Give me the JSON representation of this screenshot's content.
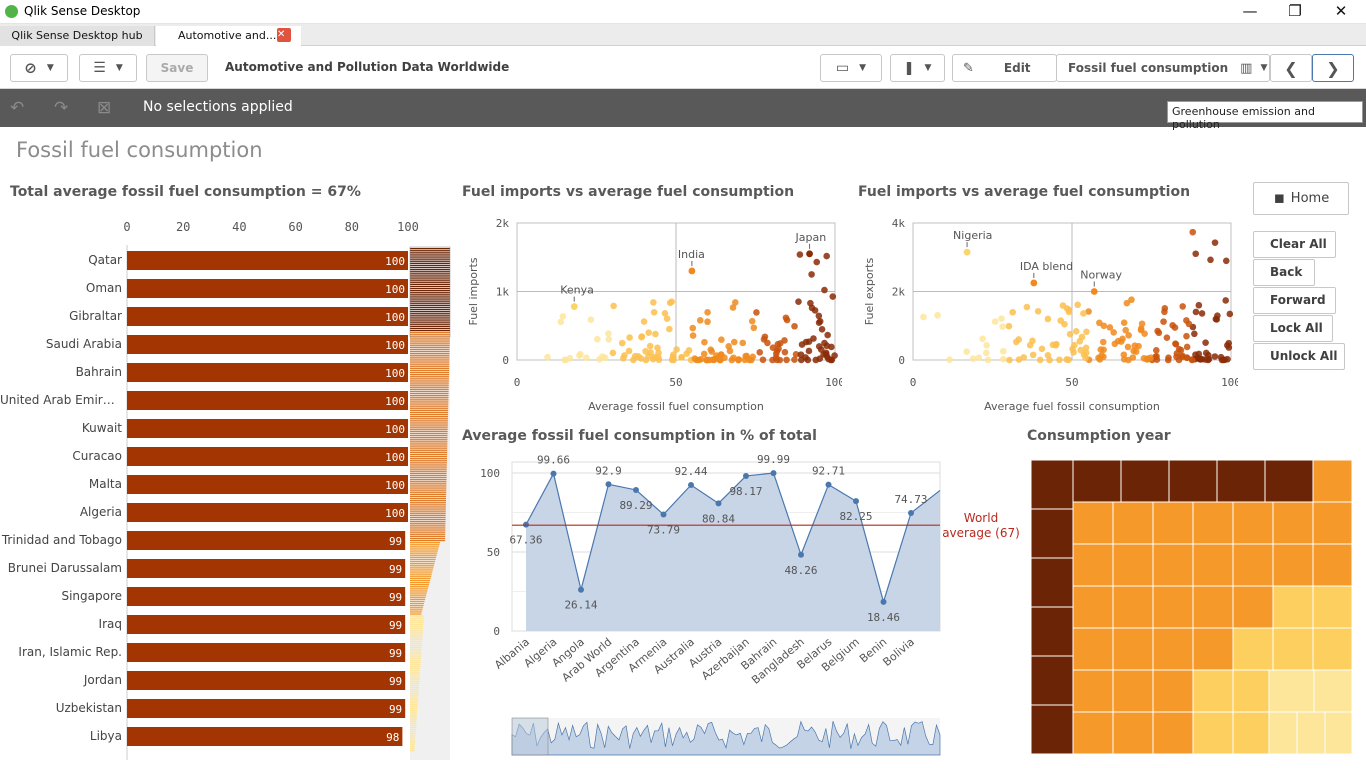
{
  "window": {
    "title": "Qlik Sense Desktop",
    "controls": [
      "—",
      "❐",
      "✕"
    ]
  },
  "tabs": [
    {
      "label": "Qlik Sense Desktop hub"
    },
    {
      "label": "Automotive and..."
    }
  ],
  "toolbar": {
    "save_label": "Save",
    "app_title": "Automotive and Pollution Data Worldwide",
    "edit_label": "Edit",
    "sheet_name": "Fossil fuel consumption"
  },
  "selections": {
    "text": "No selections applied",
    "tooltip": "Greenhouse emission and pollution"
  },
  "sheet": {
    "title": "Fossil fuel consumption"
  },
  "barchart": {
    "title": "Total average fossil fuel consumption = 67%",
    "ticks": [
      "0",
      "20",
      "40",
      "60",
      "80",
      "100"
    ],
    "rows": [
      {
        "label": "Qatar",
        "value": 100
      },
      {
        "label": "Oman",
        "value": 100
      },
      {
        "label": "Gibraltar",
        "value": 100
      },
      {
        "label": "Saudi Arabia",
        "value": 100
      },
      {
        "label": "Bahrain",
        "value": 100
      },
      {
        "label": "United Arab Emirat...",
        "value": 100
      },
      {
        "label": "Kuwait",
        "value": 100
      },
      {
        "label": "Curacao",
        "value": 100
      },
      {
        "label": "Malta",
        "value": 100
      },
      {
        "label": "Algeria",
        "value": 100
      },
      {
        "label": "Trinidad and Tobago",
        "value": 99
      },
      {
        "label": "Brunei Darussalam",
        "value": 99
      },
      {
        "label": "Singapore",
        "value": 99
      },
      {
        "label": "Iraq",
        "value": 99
      },
      {
        "label": "Iran, Islamic Rep.",
        "value": 99
      },
      {
        "label": "Jordan",
        "value": 99
      },
      {
        "label": "Uzbekistan",
        "value": 99
      },
      {
        "label": "Libya",
        "value": 98
      }
    ]
  },
  "scatter1": {
    "title": "Fuel imports vs average fuel consumption",
    "ylabel": "Fuel imports",
    "xlabel": "Average fossil fuel consumption",
    "yticks": [
      "2k",
      "1k",
      "0"
    ],
    "xticks": [
      "0",
      "50",
      "100"
    ],
    "annotations": [
      {
        "label": "Kenya",
        "x": 18,
        "y": 780
      },
      {
        "label": "India",
        "x": 55,
        "y": 1300
      },
      {
        "label": "Japan",
        "x": 92,
        "y": 1550
      }
    ]
  },
  "scatter2": {
    "title": "Fuel imports vs average fuel consumption",
    "ylabel": "Fuel exports",
    "xlabel": "Average fuel fossil consumption",
    "yticks": [
      "4k",
      "2k",
      "0"
    ],
    "xticks": [
      "0",
      "50",
      "100"
    ],
    "annotations": [
      {
        "label": "Nigeria",
        "x": 17,
        "y": 3150
      },
      {
        "label": "IDA blend",
        "x": 38,
        "y": 2250
      },
      {
        "label": "Norway",
        "x": 57,
        "y": 2000
      }
    ]
  },
  "linechart": {
    "title": "Average fossil fuel consumption in % of total",
    "yticks": [
      "100",
      "50",
      "0"
    ],
    "reference_label": "World average (67)",
    "reference_line_label_1": "World",
    "reference_line_label_2": "average (67)"
  },
  "chart_data": [
    {
      "type": "bar",
      "title": "Total average fossil fuel consumption = 67%",
      "categories": [
        "Qatar",
        "Oman",
        "Gibraltar",
        "Saudi Arabia",
        "Bahrain",
        "United Arab Emirat...",
        "Kuwait",
        "Curacao",
        "Malta",
        "Algeria",
        "Trinidad and Tobago",
        "Brunei Darussalam",
        "Singapore",
        "Iraq",
        "Iran, Islamic Rep.",
        "Jordan",
        "Uzbekistan",
        "Libya"
      ],
      "values": [
        100,
        100,
        100,
        100,
        100,
        100,
        100,
        100,
        100,
        100,
        99,
        99,
        99,
        99,
        99,
        99,
        99,
        98
      ],
      "xlim": [
        0,
        100
      ]
    },
    {
      "type": "line",
      "title": "Average fossil fuel consumption in % of total",
      "categories": [
        "Albania",
        "Algeria",
        "Angola",
        "Arab World",
        "Argentina",
        "Armenia",
        "Australia",
        "Austria",
        "Azerbaijan",
        "Bahrain",
        "Bangladesh",
        "Belarus",
        "Belgium",
        "Benin",
        "Bolivia"
      ],
      "values": [
        67.36,
        99.66,
        26.14,
        92.9,
        89.29,
        73.79,
        92.44,
        80.84,
        98.17,
        99.99,
        48.26,
        92.71,
        82.25,
        18.46,
        74.73
      ],
      "reference": 67,
      "ylim": [
        0,
        100
      ]
    },
    {
      "type": "scatter",
      "title": "Fuel imports vs average fuel consumption",
      "xlabel": "Average fossil fuel consumption",
      "ylabel": "Fuel imports",
      "xlim": [
        0,
        100
      ],
      "ylim": [
        0,
        2000
      ]
    },
    {
      "type": "scatter",
      "title": "Fuel imports vs average fuel consumption",
      "xlabel": "Average fuel fossil consumption",
      "ylabel": "Fuel exports",
      "xlim": [
        0,
        100
      ],
      "ylim": [
        0,
        4000
      ]
    },
    {
      "type": "heatmap",
      "title": "Consumption year"
    }
  ],
  "treemap": {
    "title": "Consumption year"
  },
  "nav": {
    "home": "Home",
    "clear_all": "Clear All",
    "back": "Back",
    "forward": "Forward",
    "lock_all": "Lock All",
    "unlock_all": "Unlock All"
  },
  "colors": {
    "bar": "#a33502",
    "dark": "#6b2406",
    "mid": "#f59a2a",
    "light": "#fccf5f",
    "pale": "#fde59a",
    "area": "#c5d3e6",
    "line": "#4a78ae",
    "ref": "#b82a1f",
    "toolbar_dark": "#595959"
  }
}
